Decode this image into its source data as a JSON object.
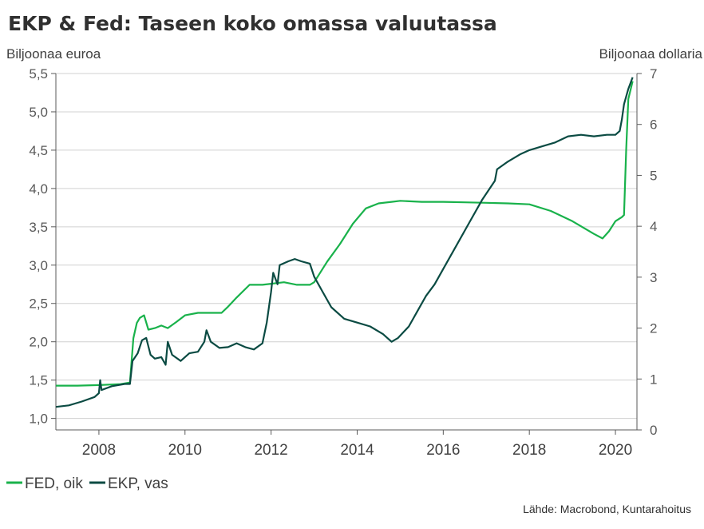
{
  "chart_data": {
    "type": "line",
    "title": "EKP & Fed: Taseen koko omassa valuutassa",
    "ylabel_left": "Biljoonaa euroa",
    "ylabel_right": "Biljoonaa dollaria",
    "y_left_ticks": [
      "1,0",
      "1,5",
      "2,0",
      "2,5",
      "3,0",
      "3,5",
      "4,0",
      "4,5",
      "5,0",
      "5,5"
    ],
    "y_right_ticks": [
      "0",
      "1",
      "2",
      "3",
      "4",
      "5",
      "6",
      "7"
    ],
    "x_ticks": [
      "2008",
      "2010",
      "2012",
      "2014",
      "2016",
      "2018",
      "2020"
    ],
    "xlim": [
      2007.0,
      2020.5
    ],
    "ylim_left": [
      0.85,
      5.5
    ],
    "ylim_right": [
      0,
      7
    ],
    "grid": true,
    "legend_position": "bottom-left",
    "source": "Lähde: Macrobond, Kuntarahoitus",
    "colors": {
      "fed": "#19b24b",
      "ekp": "#0b4b43"
    },
    "series": [
      {
        "name": "FED, oik",
        "axis": "right",
        "color": "#19b24b",
        "points": [
          [
            2007.0,
            0.87
          ],
          [
            2007.5,
            0.87
          ],
          [
            2008.0,
            0.88
          ],
          [
            2008.5,
            0.9
          ],
          [
            2008.72,
            0.93
          ],
          [
            2008.8,
            1.8
          ],
          [
            2008.88,
            2.1
          ],
          [
            2008.95,
            2.2
          ],
          [
            2009.05,
            2.25
          ],
          [
            2009.15,
            1.97
          ],
          [
            2009.3,
            2.0
          ],
          [
            2009.45,
            2.05
          ],
          [
            2009.6,
            2.0
          ],
          [
            2009.8,
            2.12
          ],
          [
            2010.0,
            2.25
          ],
          [
            2010.3,
            2.3
          ],
          [
            2010.6,
            2.3
          ],
          [
            2010.85,
            2.3
          ],
          [
            2011.0,
            2.42
          ],
          [
            2011.2,
            2.6
          ],
          [
            2011.5,
            2.85
          ],
          [
            2011.8,
            2.85
          ],
          [
            2012.0,
            2.87
          ],
          [
            2012.3,
            2.9
          ],
          [
            2012.6,
            2.85
          ],
          [
            2012.9,
            2.85
          ],
          [
            2013.0,
            2.9
          ],
          [
            2013.3,
            3.3
          ],
          [
            2013.6,
            3.65
          ],
          [
            2013.9,
            4.05
          ],
          [
            2014.2,
            4.35
          ],
          [
            2014.5,
            4.45
          ],
          [
            2014.8,
            4.48
          ],
          [
            2015.0,
            4.5
          ],
          [
            2015.5,
            4.48
          ],
          [
            2016.0,
            4.48
          ],
          [
            2016.5,
            4.47
          ],
          [
            2017.0,
            4.46
          ],
          [
            2017.5,
            4.45
          ],
          [
            2018.0,
            4.43
          ],
          [
            2018.5,
            4.3
          ],
          [
            2019.0,
            4.1
          ],
          [
            2019.5,
            3.85
          ],
          [
            2019.7,
            3.76
          ],
          [
            2019.85,
            3.9
          ],
          [
            2020.0,
            4.1
          ],
          [
            2020.15,
            4.18
          ],
          [
            2020.2,
            4.22
          ],
          [
            2020.25,
            5.5
          ],
          [
            2020.3,
            6.5
          ],
          [
            2020.4,
            6.85
          ]
        ]
      },
      {
        "name": "EKP, vas",
        "axis": "left",
        "color": "#0b4b43",
        "points": [
          [
            2007.0,
            1.15
          ],
          [
            2007.3,
            1.17
          ],
          [
            2007.6,
            1.22
          ],
          [
            2007.9,
            1.28
          ],
          [
            2008.0,
            1.33
          ],
          [
            2008.03,
            1.5
          ],
          [
            2008.06,
            1.37
          ],
          [
            2008.3,
            1.42
          ],
          [
            2008.6,
            1.45
          ],
          [
            2008.72,
            1.45
          ],
          [
            2008.78,
            1.75
          ],
          [
            2008.9,
            1.85
          ],
          [
            2009.0,
            2.02
          ],
          [
            2009.1,
            2.05
          ],
          [
            2009.2,
            1.83
          ],
          [
            2009.3,
            1.78
          ],
          [
            2009.45,
            1.8
          ],
          [
            2009.55,
            1.7
          ],
          [
            2009.6,
            2.0
          ],
          [
            2009.7,
            1.83
          ],
          [
            2009.9,
            1.75
          ],
          [
            2010.1,
            1.85
          ],
          [
            2010.3,
            1.87
          ],
          [
            2010.45,
            2.0
          ],
          [
            2010.5,
            2.15
          ],
          [
            2010.6,
            2.0
          ],
          [
            2010.8,
            1.92
          ],
          [
            2011.0,
            1.93
          ],
          [
            2011.2,
            1.98
          ],
          [
            2011.4,
            1.93
          ],
          [
            2011.6,
            1.9
          ],
          [
            2011.8,
            1.98
          ],
          [
            2011.9,
            2.25
          ],
          [
            2012.0,
            2.65
          ],
          [
            2012.05,
            2.9
          ],
          [
            2012.15,
            2.75
          ],
          [
            2012.2,
            3.0
          ],
          [
            2012.4,
            3.05
          ],
          [
            2012.55,
            3.08
          ],
          [
            2012.7,
            3.05
          ],
          [
            2012.9,
            3.02
          ],
          [
            2013.0,
            2.85
          ],
          [
            2013.2,
            2.65
          ],
          [
            2013.4,
            2.45
          ],
          [
            2013.7,
            2.3
          ],
          [
            2014.0,
            2.25
          ],
          [
            2014.3,
            2.2
          ],
          [
            2014.6,
            2.1
          ],
          [
            2014.8,
            2.0
          ],
          [
            2014.95,
            2.05
          ],
          [
            2015.2,
            2.2
          ],
          [
            2015.4,
            2.4
          ],
          [
            2015.6,
            2.6
          ],
          [
            2015.8,
            2.75
          ],
          [
            2016.0,
            2.95
          ],
          [
            2016.3,
            3.25
          ],
          [
            2016.6,
            3.55
          ],
          [
            2016.9,
            3.85
          ],
          [
            2017.2,
            4.1
          ],
          [
            2017.25,
            4.25
          ],
          [
            2017.5,
            4.35
          ],
          [
            2017.8,
            4.45
          ],
          [
            2018.0,
            4.5
          ],
          [
            2018.3,
            4.55
          ],
          [
            2018.6,
            4.6
          ],
          [
            2018.9,
            4.68
          ],
          [
            2019.2,
            4.7
          ],
          [
            2019.5,
            4.68
          ],
          [
            2019.8,
            4.7
          ],
          [
            2020.0,
            4.7
          ],
          [
            2020.1,
            4.75
          ],
          [
            2020.15,
            4.9
          ],
          [
            2020.2,
            5.1
          ],
          [
            2020.3,
            5.3
          ],
          [
            2020.4,
            5.45
          ]
        ]
      }
    ]
  }
}
